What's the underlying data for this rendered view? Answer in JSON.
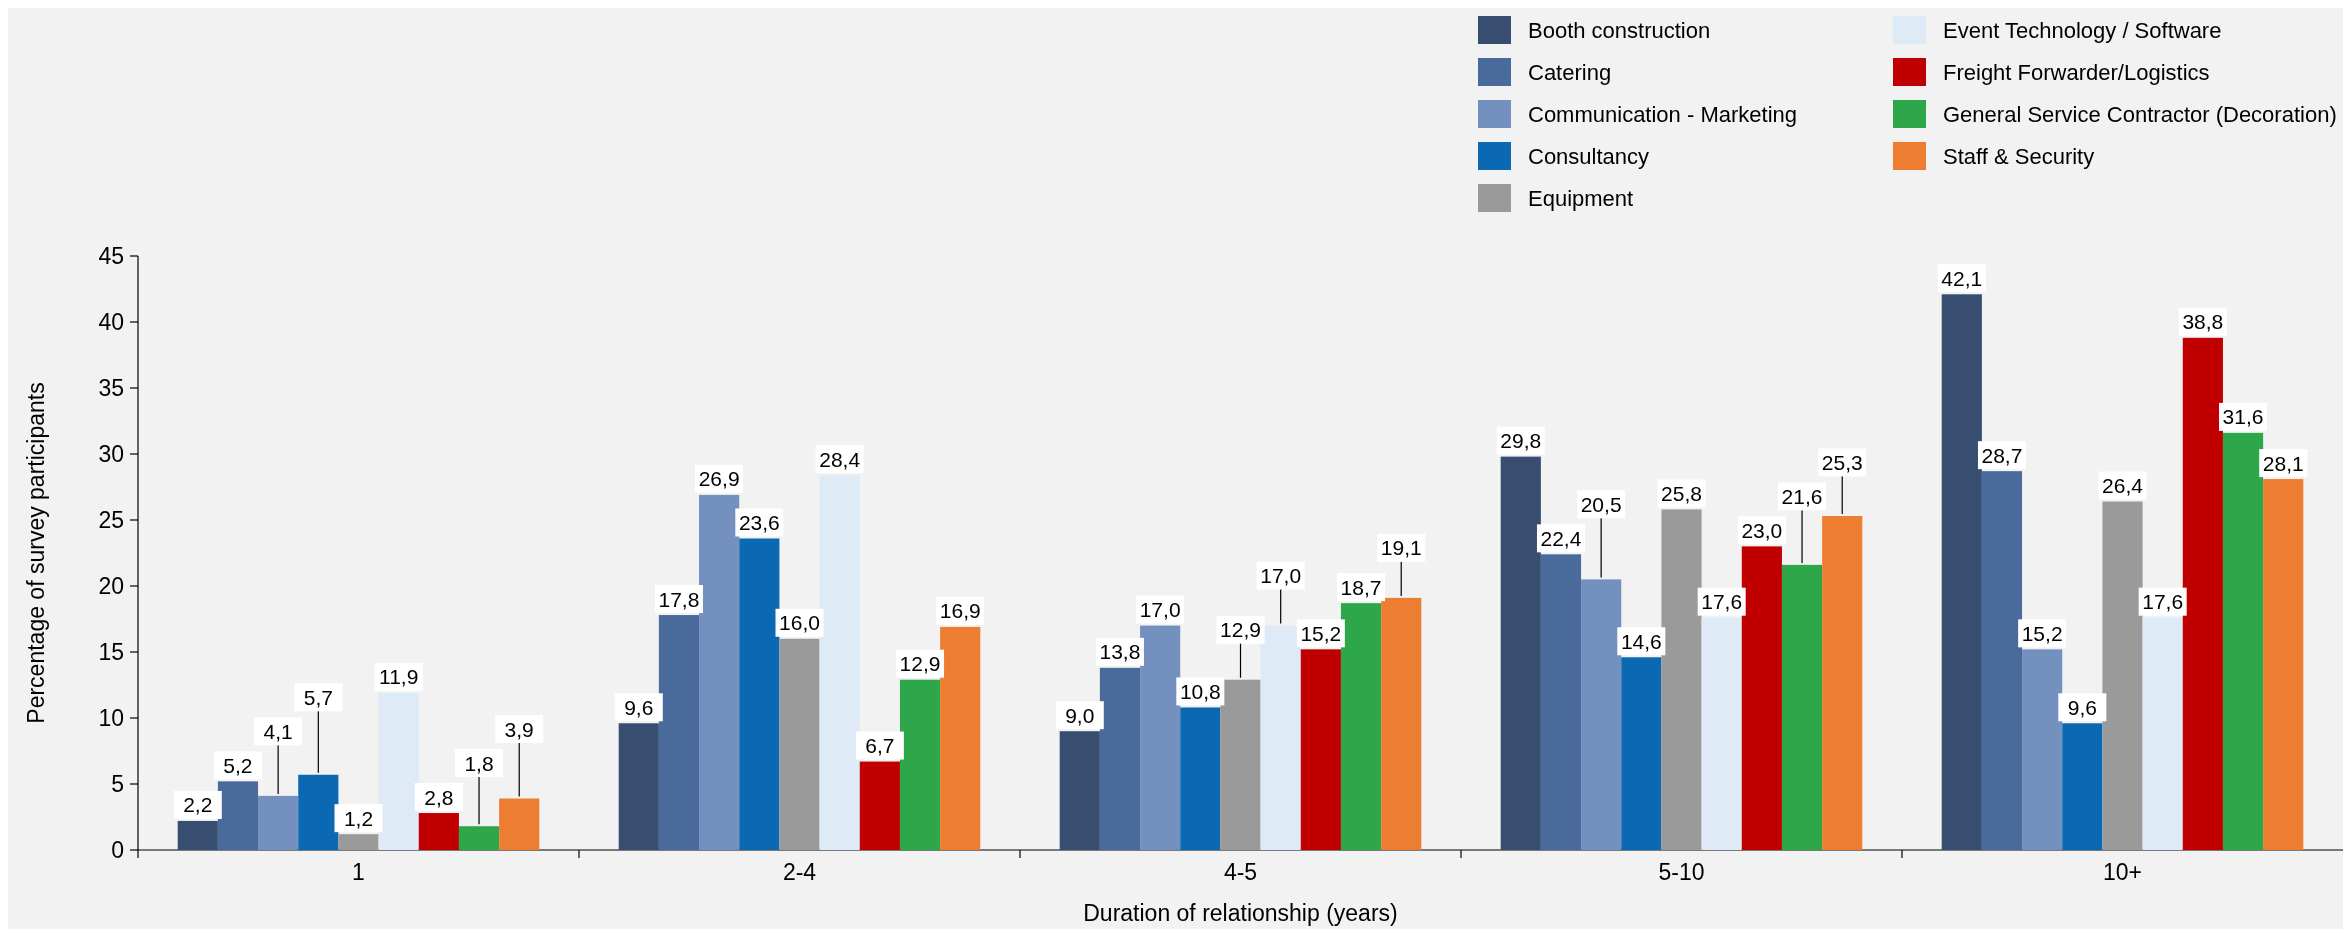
{
  "chart_data": {
    "type": "bar",
    "xlabel": "Duration of relationship (years)",
    "ylabel": "Percentage of survey participants",
    "categories": [
      "1",
      "2-4",
      "4-5",
      "5-10",
      "10+"
    ],
    "ylim": [
      0,
      45
    ],
    "yticks": [
      0,
      5,
      10,
      15,
      20,
      25,
      30,
      35,
      40,
      45
    ],
    "grid": false,
    "legend": "top right",
    "series": [
      {
        "name": "Booth construction",
        "color": "#374e70",
        "values": [
          2.2,
          9.6,
          9.0,
          29.8,
          42.1
        ],
        "value_labels": [
          "2,2",
          "9,6",
          "9,0",
          "29,8",
          "42,1"
        ]
      },
      {
        "name": "Catering",
        "color": "#4a6a9c",
        "values": [
          5.2,
          17.8,
          13.8,
          22.4,
          28.7
        ],
        "value_labels": [
          "5,2",
          "17,8",
          "13,8",
          "22,4",
          "28,7"
        ]
      },
      {
        "name": "Communication - Marketing",
        "color": "#7390bf",
        "values": [
          4.1,
          26.9,
          17.0,
          20.5,
          15.2
        ],
        "value_labels": [
          "4,1",
          "26,9",
          "17,0",
          "20,5",
          "15,2"
        ]
      },
      {
        "name": "Consultancy",
        "color": "#0b69b3",
        "values": [
          5.7,
          23.6,
          10.8,
          14.6,
          9.6
        ],
        "value_labels": [
          "5,7",
          "23,6",
          "10,8",
          "14,6",
          "9,6"
        ]
      },
      {
        "name": "Equipment",
        "color": "#9a9a9a",
        "values": [
          1.2,
          16.0,
          12.9,
          25.8,
          26.4
        ],
        "value_labels": [
          "1,2",
          "16,0",
          "12,9",
          "25,8",
          "26,4"
        ]
      },
      {
        "name": "Event Technology / Software",
        "color": "#deebf7",
        "values": [
          11.9,
          28.4,
          17.0,
          17.6,
          17.6
        ],
        "value_labels": [
          "11,9",
          "28,4",
          "17,0",
          "17,6",
          "17,6"
        ]
      },
      {
        "name": "Freight Forwarder/Logistics",
        "color": "#c00000",
        "values": [
          2.8,
          6.7,
          15.2,
          23.0,
          38.8
        ],
        "value_labels": [
          "2,8",
          "6,7",
          "15,2",
          "23,0",
          "38,8"
        ]
      },
      {
        "name": "General Service Contractor (Decoration)",
        "color": "#2ea64a",
        "values": [
          1.8,
          12.9,
          18.7,
          21.6,
          31.6
        ],
        "value_labels": [
          "1,8",
          "12,9",
          "18,7",
          "21,6",
          "31,6"
        ]
      },
      {
        "name": "Staff & Security",
        "color": "#ed7d31",
        "values": [
          3.9,
          16.9,
          19.1,
          25.3,
          28.1
        ],
        "value_labels": [
          "3,9",
          "16,9",
          "19,1",
          "25,3",
          "28,1"
        ]
      }
    ]
  }
}
